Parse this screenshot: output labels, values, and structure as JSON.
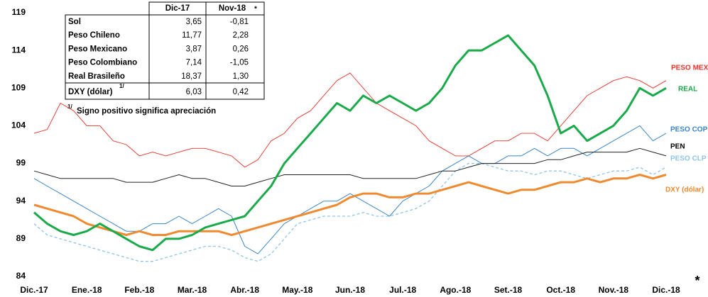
{
  "chart_data": {
    "type": "line",
    "categories": [
      "Dic.-17",
      null,
      null,
      null,
      "Ene.-18",
      null,
      null,
      null,
      "Feb.-18",
      null,
      null,
      null,
      "Mar.-18",
      null,
      null,
      null,
      "Abr.-18",
      null,
      null,
      null,
      "May.-18",
      null,
      null,
      null,
      "Jun.-18",
      null,
      null,
      null,
      "Jul.-18",
      null,
      null,
      null,
      "Ago.-18",
      null,
      null,
      null,
      "Set.-18",
      null,
      null,
      null,
      "Oct.-18",
      null,
      null,
      null,
      "Nov.-18",
      null,
      null,
      null,
      "Dic.-18"
    ],
    "ylim": [
      84,
      119
    ],
    "yticks": [
      84,
      89,
      94,
      99,
      104,
      109,
      114,
      119
    ],
    "series": [
      {
        "name": "PESO MEX",
        "color": "#e8352b",
        "values": [
          103,
          103.5,
          107,
          106,
          104,
          104,
          102,
          101.5,
          100,
          100.5,
          100,
          100.5,
          101,
          101,
          100.5,
          100,
          98.5,
          99.5,
          102,
          103,
          105,
          106,
          108,
          110,
          111,
          109,
          107,
          106,
          105,
          104,
          102,
          101,
          100,
          100,
          101,
          102,
          102,
          103,
          103,
          102,
          104,
          106,
          108,
          109,
          110,
          110.5,
          110,
          109,
          110
        ]
      },
      {
        "name": "REAL",
        "color": "#1aaa4a",
        "values": [
          92.5,
          91,
          90,
          89.5,
          90,
          91,
          90,
          89,
          88,
          87.5,
          89,
          89,
          89.5,
          90.5,
          91,
          91.5,
          92,
          94,
          96,
          99,
          101,
          103,
          105,
          107,
          106,
          108,
          107,
          108,
          107,
          106,
          107,
          109,
          112,
          114,
          114,
          115,
          116,
          114,
          112,
          108,
          103,
          104,
          102,
          103,
          104,
          106,
          109,
          108,
          109
        ]
      },
      {
        "name": "PESO COP",
        "color": "#3a85c8",
        "values": [
          97,
          96,
          95,
          94,
          93,
          92,
          91,
          90,
          90,
          91,
          91,
          92,
          91,
          92,
          93,
          92,
          88,
          87,
          89,
          91,
          92,
          93,
          94,
          94,
          95,
          94,
          93,
          92,
          94,
          95,
          96,
          98,
          99,
          100,
          99,
          99,
          100,
          100,
          101,
          100,
          101,
          101,
          100,
          101,
          102,
          103,
          104,
          102,
          103
        ]
      },
      {
        "name": "PEN",
        "color": "#222222",
        "values": [
          98,
          97.5,
          97,
          97,
          97,
          97,
          97,
          96.5,
          96.5,
          96.5,
          97,
          97.5,
          97,
          97,
          96.5,
          96,
          96,
          96.5,
          97,
          97.5,
          97.5,
          97.5,
          97.5,
          97.5,
          97.5,
          97,
          97,
          97,
          97,
          97,
          97.5,
          98,
          98,
          98.5,
          99,
          99,
          99,
          99,
          99,
          99.5,
          99.5,
          100,
          100.5,
          100.5,
          100.5,
          100.5,
          101,
          100.5,
          100
        ]
      },
      {
        "name": "PESO CLP",
        "color": "#8fc6e6",
        "dashed": true,
        "values": [
          91,
          89.5,
          89,
          88.5,
          88,
          87.5,
          87,
          86.5,
          86,
          86,
          86.5,
          87,
          87.5,
          88,
          88,
          87.5,
          86.5,
          86,
          87,
          89,
          91,
          91.5,
          92,
          92,
          92,
          92.5,
          92,
          92,
          92.5,
          93,
          94,
          96,
          98,
          99,
          99,
          98.5,
          98,
          98,
          97.5,
          98,
          98,
          97.5,
          97,
          97.5,
          98,
          98,
          98.5,
          97.5,
          98.5
        ]
      },
      {
        "name": "DXY (dólar)",
        "color": "#f08a30",
        "values": [
          93.5,
          93,
          92.5,
          92,
          91,
          90.5,
          90,
          89.5,
          90,
          89.5,
          89.5,
          90,
          90,
          90,
          90,
          89.5,
          90,
          90.5,
          91,
          91.5,
          92,
          92.5,
          93,
          93.5,
          94.5,
          95,
          95,
          94.5,
          94.5,
          95,
          95,
          95.5,
          96,
          96.5,
          96,
          95.5,
          95,
          95.5,
          95.5,
          96,
          96.5,
          96.5,
          97,
          96.5,
          97,
          97,
          97.5,
          97,
          97.5
        ]
      }
    ],
    "note": "*"
  },
  "table": {
    "header": [
      "Dic-17",
      "Nov-18",
      "*"
    ],
    "rows": [
      [
        "Sol",
        "3,65",
        "-0,81"
      ],
      [
        "Peso Chileno",
        "11,77",
        "2,28"
      ],
      [
        "Peso Mexicano",
        "3,87",
        "0,26"
      ],
      [
        "Peso Colombiano",
        "7,14",
        "-1,05"
      ],
      [
        "Real Brasileño",
        "18,37",
        "1,30"
      ]
    ],
    "dxy": {
      "label": "DXY (dólar)",
      "sup": "1/",
      "values": [
        "6,03",
        "0,42"
      ]
    },
    "footnote": {
      "sup": "1/",
      "text": "Signo positivo significa apreciación"
    }
  }
}
